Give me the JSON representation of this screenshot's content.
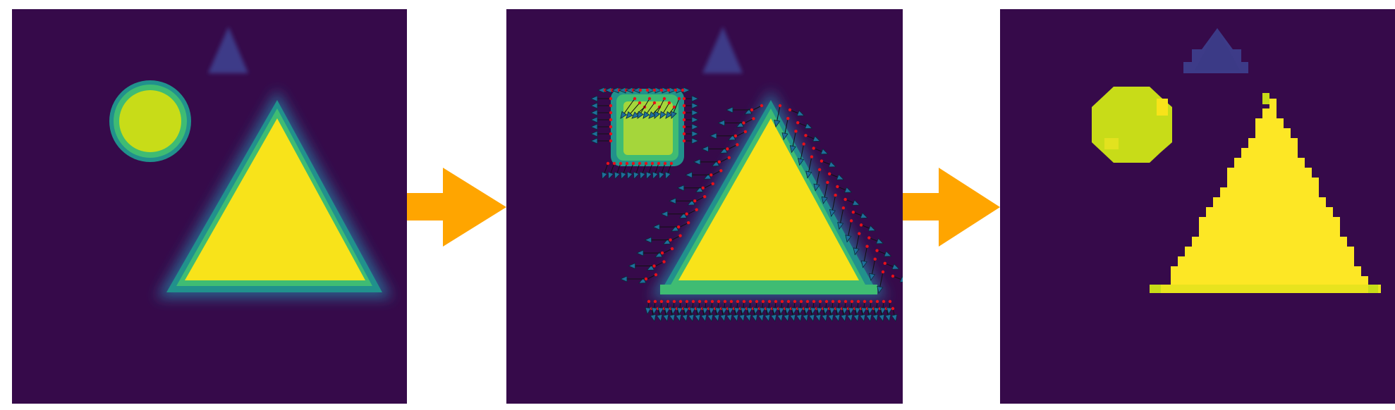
{
  "figure": {
    "panels": [
      {
        "id": "input",
        "stage": "blurred"
      },
      {
        "id": "flow",
        "stage": "vector-field"
      },
      {
        "id": "output",
        "stage": "sharpened"
      }
    ],
    "arrows": [
      {
        "from": "input",
        "to": "flow"
      },
      {
        "from": "flow",
        "to": "output"
      }
    ]
  },
  "colors": {
    "background": "#360a4a",
    "yellow": "#f8e31a",
    "bright_yellow": "#fde725",
    "circle_green": "#c8dc18",
    "teal": "#21918c",
    "green": "#3fbc73",
    "navy": "#3b528b",
    "faint_triangle": "#3d3b88",
    "arrow_orange": "#ffa500",
    "vector_head": "#1f6f9b",
    "vector_dot": "#e8101a"
  }
}
